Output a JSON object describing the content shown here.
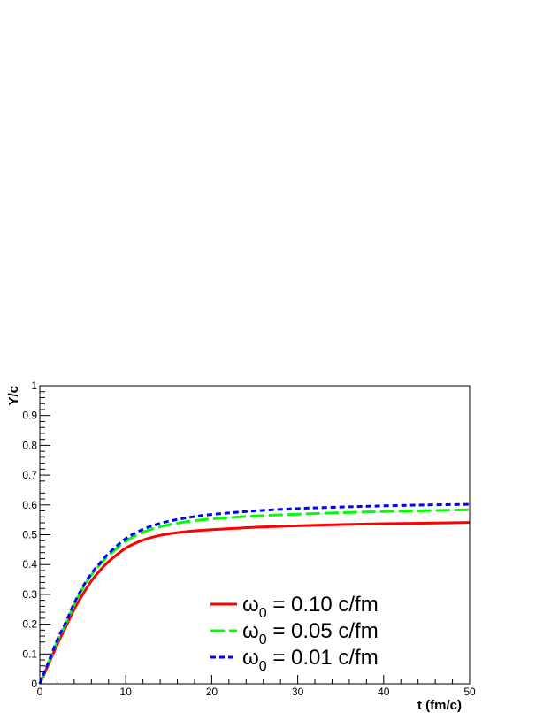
{
  "chart_data": {
    "type": "line",
    "xlabel": "t (fm/c)",
    "ylabel": "Y/c",
    "xlim": [
      0,
      50
    ],
    "ylim": [
      0,
      1
    ],
    "x_ticks": [
      0,
      10,
      20,
      30,
      40,
      50
    ],
    "y_ticks": [
      0,
      0.1,
      0.2,
      0.3,
      0.4,
      0.5,
      0.6,
      0.7,
      0.8,
      0.9,
      1
    ],
    "x_tick_labels": [
      "0",
      "10",
      "20",
      "30",
      "40",
      "50"
    ],
    "y_tick_labels": [
      "0",
      "0.1",
      "0.2",
      "0.3",
      "0.4",
      "0.5",
      "0.6",
      "0.7",
      "0.8",
      "0.9",
      "1"
    ],
    "grid": false,
    "legend_position": "bottom-right",
    "series": [
      {
        "name": "ω0 = 0.10 c/fm",
        "name_parts": {
          "symbol": "ω",
          "sub": "0",
          "rest": " = 0.10 c/fm"
        },
        "color": "#ff0000",
        "dash": "solid",
        "x": [
          0,
          1,
          2,
          3,
          4,
          5,
          6,
          7,
          8,
          10,
          12,
          14,
          16,
          18,
          20,
          25,
          30,
          35,
          40,
          45,
          50
        ],
        "y": [
          0,
          0.065,
          0.13,
          0.19,
          0.25,
          0.3,
          0.345,
          0.38,
          0.41,
          0.455,
          0.482,
          0.498,
          0.507,
          0.513,
          0.517,
          0.525,
          0.53,
          0.534,
          0.537,
          0.539,
          0.541
        ]
      },
      {
        "name": "ω0 = 0.05 c/fm",
        "name_parts": {
          "symbol": "ω",
          "sub": "0",
          "rest": " = 0.05 c/fm"
        },
        "color": "#00ff00",
        "dash": "long-dash",
        "x": [
          0,
          1,
          2,
          3,
          4,
          5,
          6,
          7,
          8,
          10,
          12,
          14,
          16,
          18,
          20,
          25,
          30,
          35,
          40,
          45,
          50
        ],
        "y": [
          0,
          0.07,
          0.14,
          0.2,
          0.265,
          0.32,
          0.365,
          0.4,
          0.43,
          0.478,
          0.508,
          0.527,
          0.539,
          0.547,
          0.553,
          0.563,
          0.569,
          0.574,
          0.578,
          0.581,
          0.584
        ]
      },
      {
        "name": "ω0 = 0.01 c/fm",
        "name_parts": {
          "symbol": "ω",
          "sub": "0",
          "rest": " = 0.01 c/fm"
        },
        "color": "#0000ff",
        "dash": "short-dash",
        "x": [
          0,
          1,
          2,
          3,
          4,
          5,
          6,
          7,
          8,
          10,
          12,
          14,
          16,
          18,
          20,
          25,
          30,
          35,
          40,
          45,
          50
        ],
        "y": [
          0,
          0.072,
          0.145,
          0.205,
          0.27,
          0.325,
          0.37,
          0.405,
          0.437,
          0.487,
          0.518,
          0.538,
          0.551,
          0.561,
          0.568,
          0.58,
          0.588,
          0.593,
          0.597,
          0.6,
          0.602
        ]
      }
    ]
  }
}
